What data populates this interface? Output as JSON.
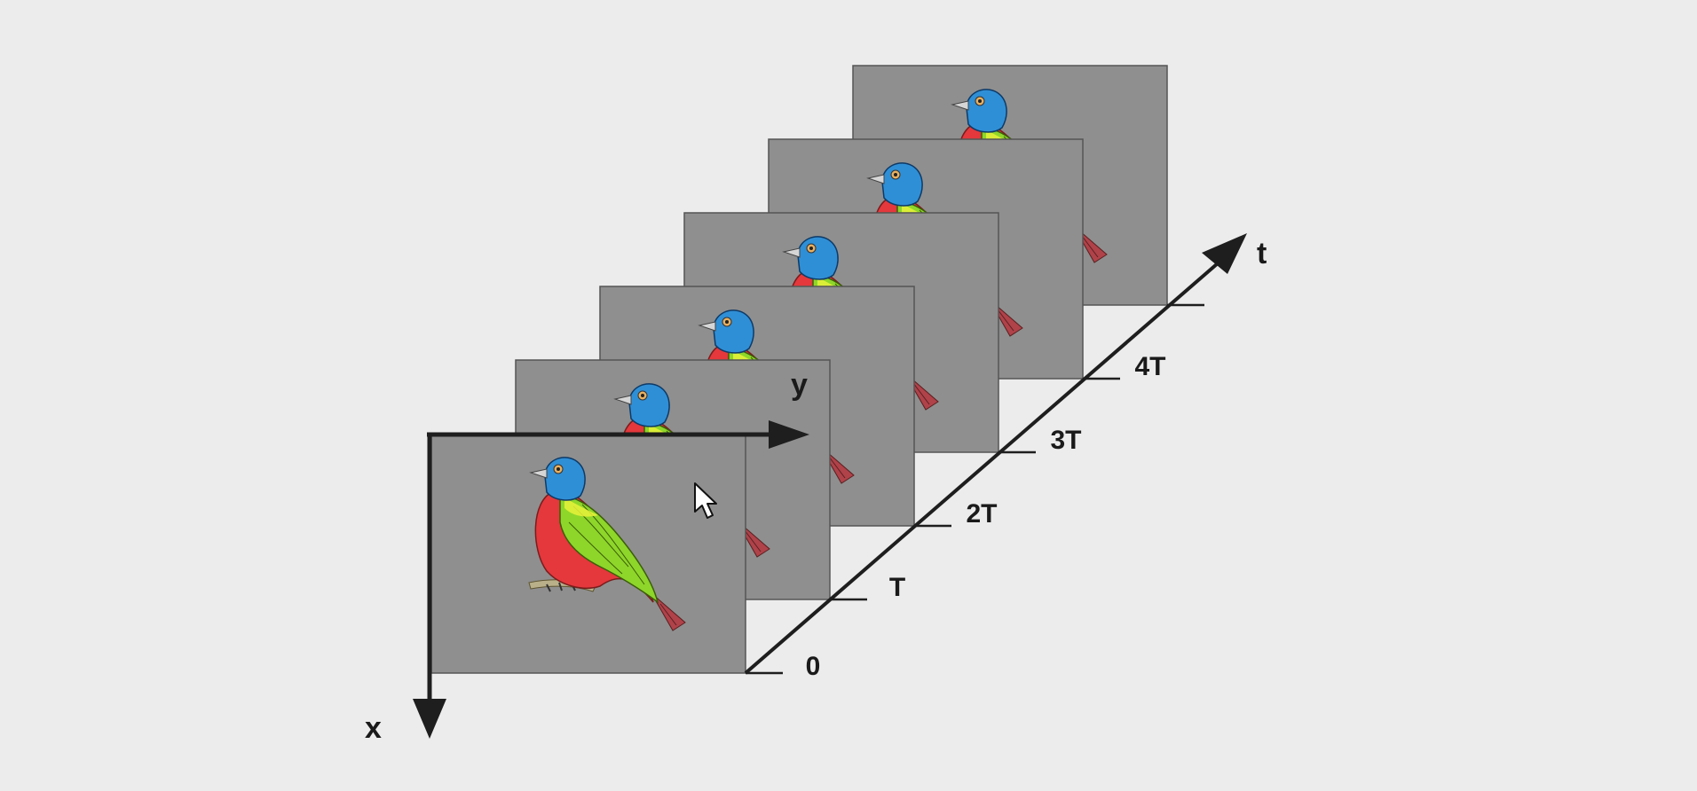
{
  "diagram": {
    "axis_labels": {
      "x": "x",
      "y": "y",
      "t": "t"
    },
    "time_ticks": [
      "0",
      "T",
      "2T",
      "3T",
      "4T"
    ],
    "frame_count": 6,
    "colors": {
      "background": "#ececec",
      "frame": "#8f8f8f",
      "frame_border": "#555555",
      "axis": "#1e1e1e",
      "bird_head": "#2f8fd6",
      "bird_chest": "#e4383c",
      "bird_wing": "#8ed62a",
      "bird_tail": "#b0424a",
      "perch": "#b9b08a"
    },
    "icons": {
      "cursor": "mouse-cursor-icon",
      "bird": "bird-icon"
    }
  }
}
